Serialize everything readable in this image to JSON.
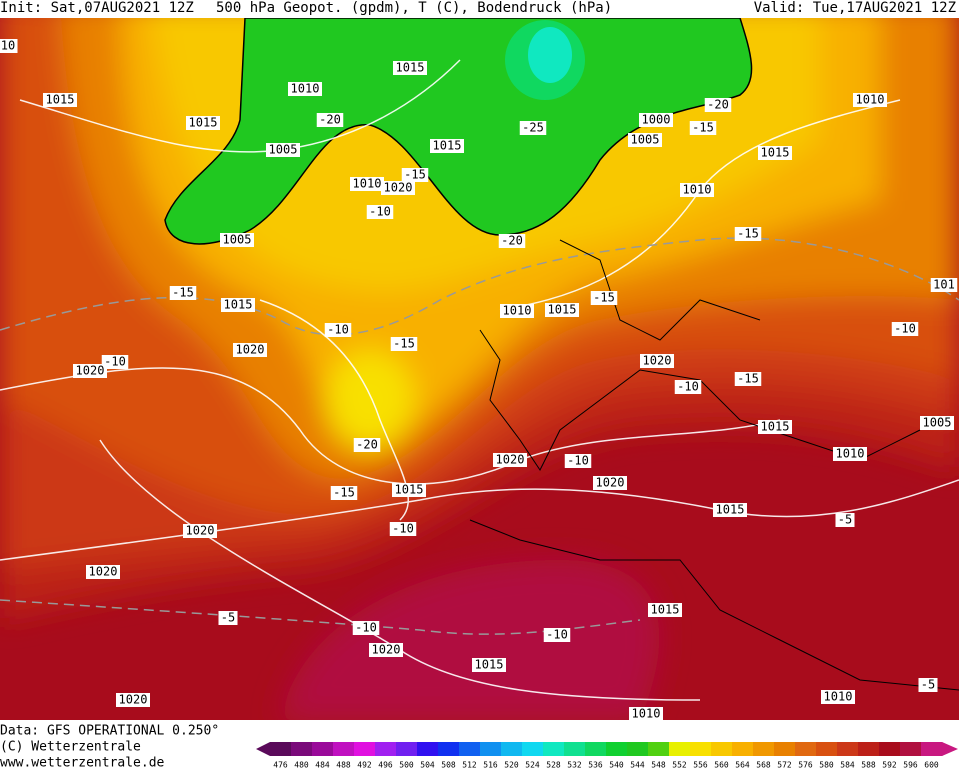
{
  "header": {
    "init": "Init: Sat,07AUG2021 12Z",
    "title": "500 hPa Geopot. (gpdm), T (C), Bodendruck (hPa)",
    "valid": "Valid: Tue,17AUG2021 12Z"
  },
  "map": {
    "labels": [
      10,
      1015,
      1015,
      1010,
      1015,
      -20,
      1005,
      1015,
      -25,
      1000,
      1005,
      -20,
      -15,
      1010,
      1015,
      1010,
      1020,
      -15,
      -10,
      1010,
      -20,
      1005,
      -15,
      -15,
      1015,
      1010,
      1015,
      -15,
      101,
      -10,
      -10,
      -15,
      1020,
      -10,
      1020,
      1020,
      -10,
      -15,
      -20,
      1015,
      1005,
      1010,
      1020,
      -10,
      -15,
      1015,
      1020,
      1015,
      -5,
      -10,
      1020,
      1020,
      -5,
      -10,
      -10,
      1015,
      1020,
      1015,
      1010,
      -5,
      1020,
      1010
    ]
  },
  "colorbar": {
    "levels": [
      476,
      480,
      484,
      488,
      492,
      496,
      500,
      504,
      508,
      512,
      516,
      520,
      524,
      528,
      532,
      536,
      540,
      544,
      548,
      552,
      556,
      560,
      564,
      568,
      572,
      576,
      580,
      584,
      588,
      592,
      596,
      600
    ],
    "colors": [
      "#5a0a5a",
      "#7a0a7a",
      "#9a0a9a",
      "#c010c0",
      "#e010e0",
      "#a020f0",
      "#7020f0",
      "#3010f0",
      "#1030f0",
      "#1060f0",
      "#1090f0",
      "#10b8f0",
      "#10d8f0",
      "#10e8c0",
      "#10e090",
      "#10d860",
      "#10d030",
      "#20c820",
      "#50d010",
      "#e8f000",
      "#f8e000",
      "#f8c800",
      "#f8b000",
      "#f09800",
      "#e88000",
      "#e06810",
      "#d85010",
      "#cc3818",
      "#bc2018",
      "#a80c1c",
      "#b01040",
      "#c81880"
    ]
  },
  "footer": {
    "data": "Data: GFS OPERATIONAL 0.250°",
    "copyright": "(C) Wetterzentrale",
    "url": "www.wetterzentrale.de"
  }
}
